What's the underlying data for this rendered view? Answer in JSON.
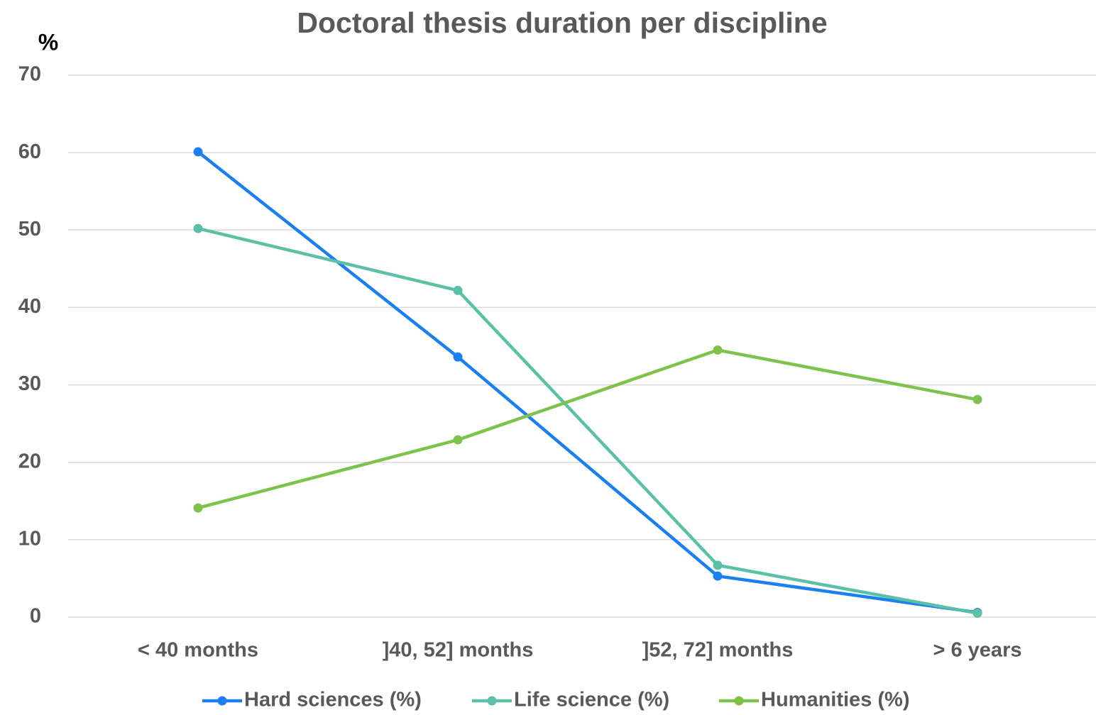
{
  "chart_data": {
    "type": "line",
    "title": "Doctoral thesis duration per discipline",
    "y_label": "%",
    "categories": [
      "< 40 months",
      "]40, 52] months",
      "]52, 72] months",
      "> 6 years"
    ],
    "series": [
      {
        "name": "Hard sciences (%)",
        "color": "#1a7ff0",
        "values": [
          60.1,
          33.6,
          5.3,
          0.6
        ]
      },
      {
        "name": "Life science (%)",
        "color": "#5bc0a8",
        "values": [
          50.2,
          42.2,
          6.7,
          0.5
        ]
      },
      {
        "name": "Humanities (%)",
        "color": "#7dc24b",
        "values": [
          14.1,
          22.9,
          34.5,
          28.1
        ]
      }
    ],
    "ylim": [
      0,
      70
    ],
    "yticks": [
      0,
      10,
      20,
      30,
      40,
      50,
      60,
      70
    ],
    "grid": true,
    "legend": "bottom"
  }
}
